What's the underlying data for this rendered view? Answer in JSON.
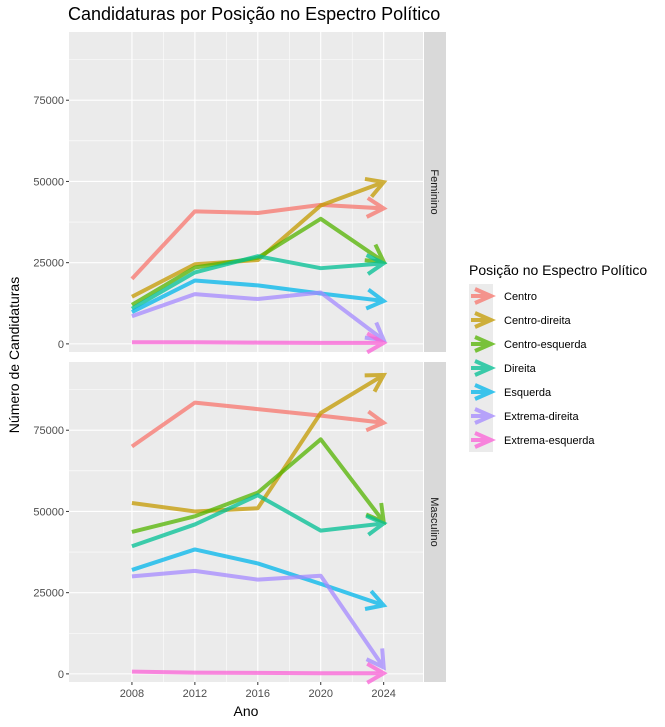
{
  "chart_data": {
    "type": "line",
    "title": "Candidaturas por Posição no Espectro Político",
    "xlabel": "Ano",
    "ylabel": "Número de Candidaturas",
    "x": [
      2008,
      2012,
      2016,
      2020,
      2024
    ],
    "xlim": [
      2004,
      2026.5
    ],
    "ylim": [
      -2500,
      96000
    ],
    "yticks": [
      0,
      25000,
      50000,
      75000
    ],
    "xticks": [
      2008,
      2012,
      2016,
      2020,
      2024
    ],
    "grid": true,
    "arrow_at_end": true,
    "legend": {
      "title": "Posição no Espectro Político",
      "placement": "right"
    },
    "series_meta": [
      {
        "name": "Centro",
        "color": "#F8766D"
      },
      {
        "name": "Centro-direita",
        "color": "#C49A00"
      },
      {
        "name": "Centro-esquerda",
        "color": "#53B400"
      },
      {
        "name": "Direita",
        "color": "#00C094"
      },
      {
        "name": "Esquerda",
        "color": "#00B6EB"
      },
      {
        "name": "Extrema-direita",
        "color": "#A58AFF"
      },
      {
        "name": "Extrema-esquerda",
        "color": "#FB61D7"
      }
    ],
    "facets": [
      {
        "label": "Feminino",
        "series": [
          {
            "name": "Centro",
            "values": [
              20000,
              40800,
              40300,
              42800,
              41700
            ]
          },
          {
            "name": "Centro-direita",
            "values": [
              14500,
              24500,
              25800,
              42600,
              49800
            ]
          },
          {
            "name": "Centro-esquerda",
            "values": [
              12000,
              23500,
              26500,
              38500,
              25300
            ]
          },
          {
            "name": "Direita",
            "values": [
              10800,
              22000,
              27000,
              23300,
              24800
            ]
          },
          {
            "name": "Esquerda",
            "values": [
              9800,
              19500,
              18000,
              15500,
              13200
            ]
          },
          {
            "name": "Extrema-direita",
            "values": [
              8500,
              15300,
              13800,
              15800,
              1200
            ]
          },
          {
            "name": "Extrema-esquerda",
            "values": [
              500,
              500,
              400,
              300,
              300
            ]
          }
        ]
      },
      {
        "label": "Masculino",
        "series": [
          {
            "name": "Centro",
            "values": [
              70000,
              83500,
              81500,
              79500,
              77300
            ]
          },
          {
            "name": "Centro-direita",
            "values": [
              52600,
              50000,
              51000,
              80300,
              92000
            ]
          },
          {
            "name": "Centro-esquerda",
            "values": [
              43700,
              48500,
              55800,
              72200,
              46800
            ]
          },
          {
            "name": "Direita",
            "values": [
              39300,
              46000,
              55000,
              44100,
              46300
            ]
          },
          {
            "name": "Esquerda",
            "values": [
              32000,
              38300,
              34000,
              27700,
              21100
            ]
          },
          {
            "name": "Extrema-direita",
            "values": [
              30000,
              31700,
              29000,
              30200,
              2000
            ]
          },
          {
            "name": "Extrema-esquerda",
            "values": [
              700,
              400,
              300,
              200,
              200
            ]
          }
        ]
      }
    ]
  }
}
